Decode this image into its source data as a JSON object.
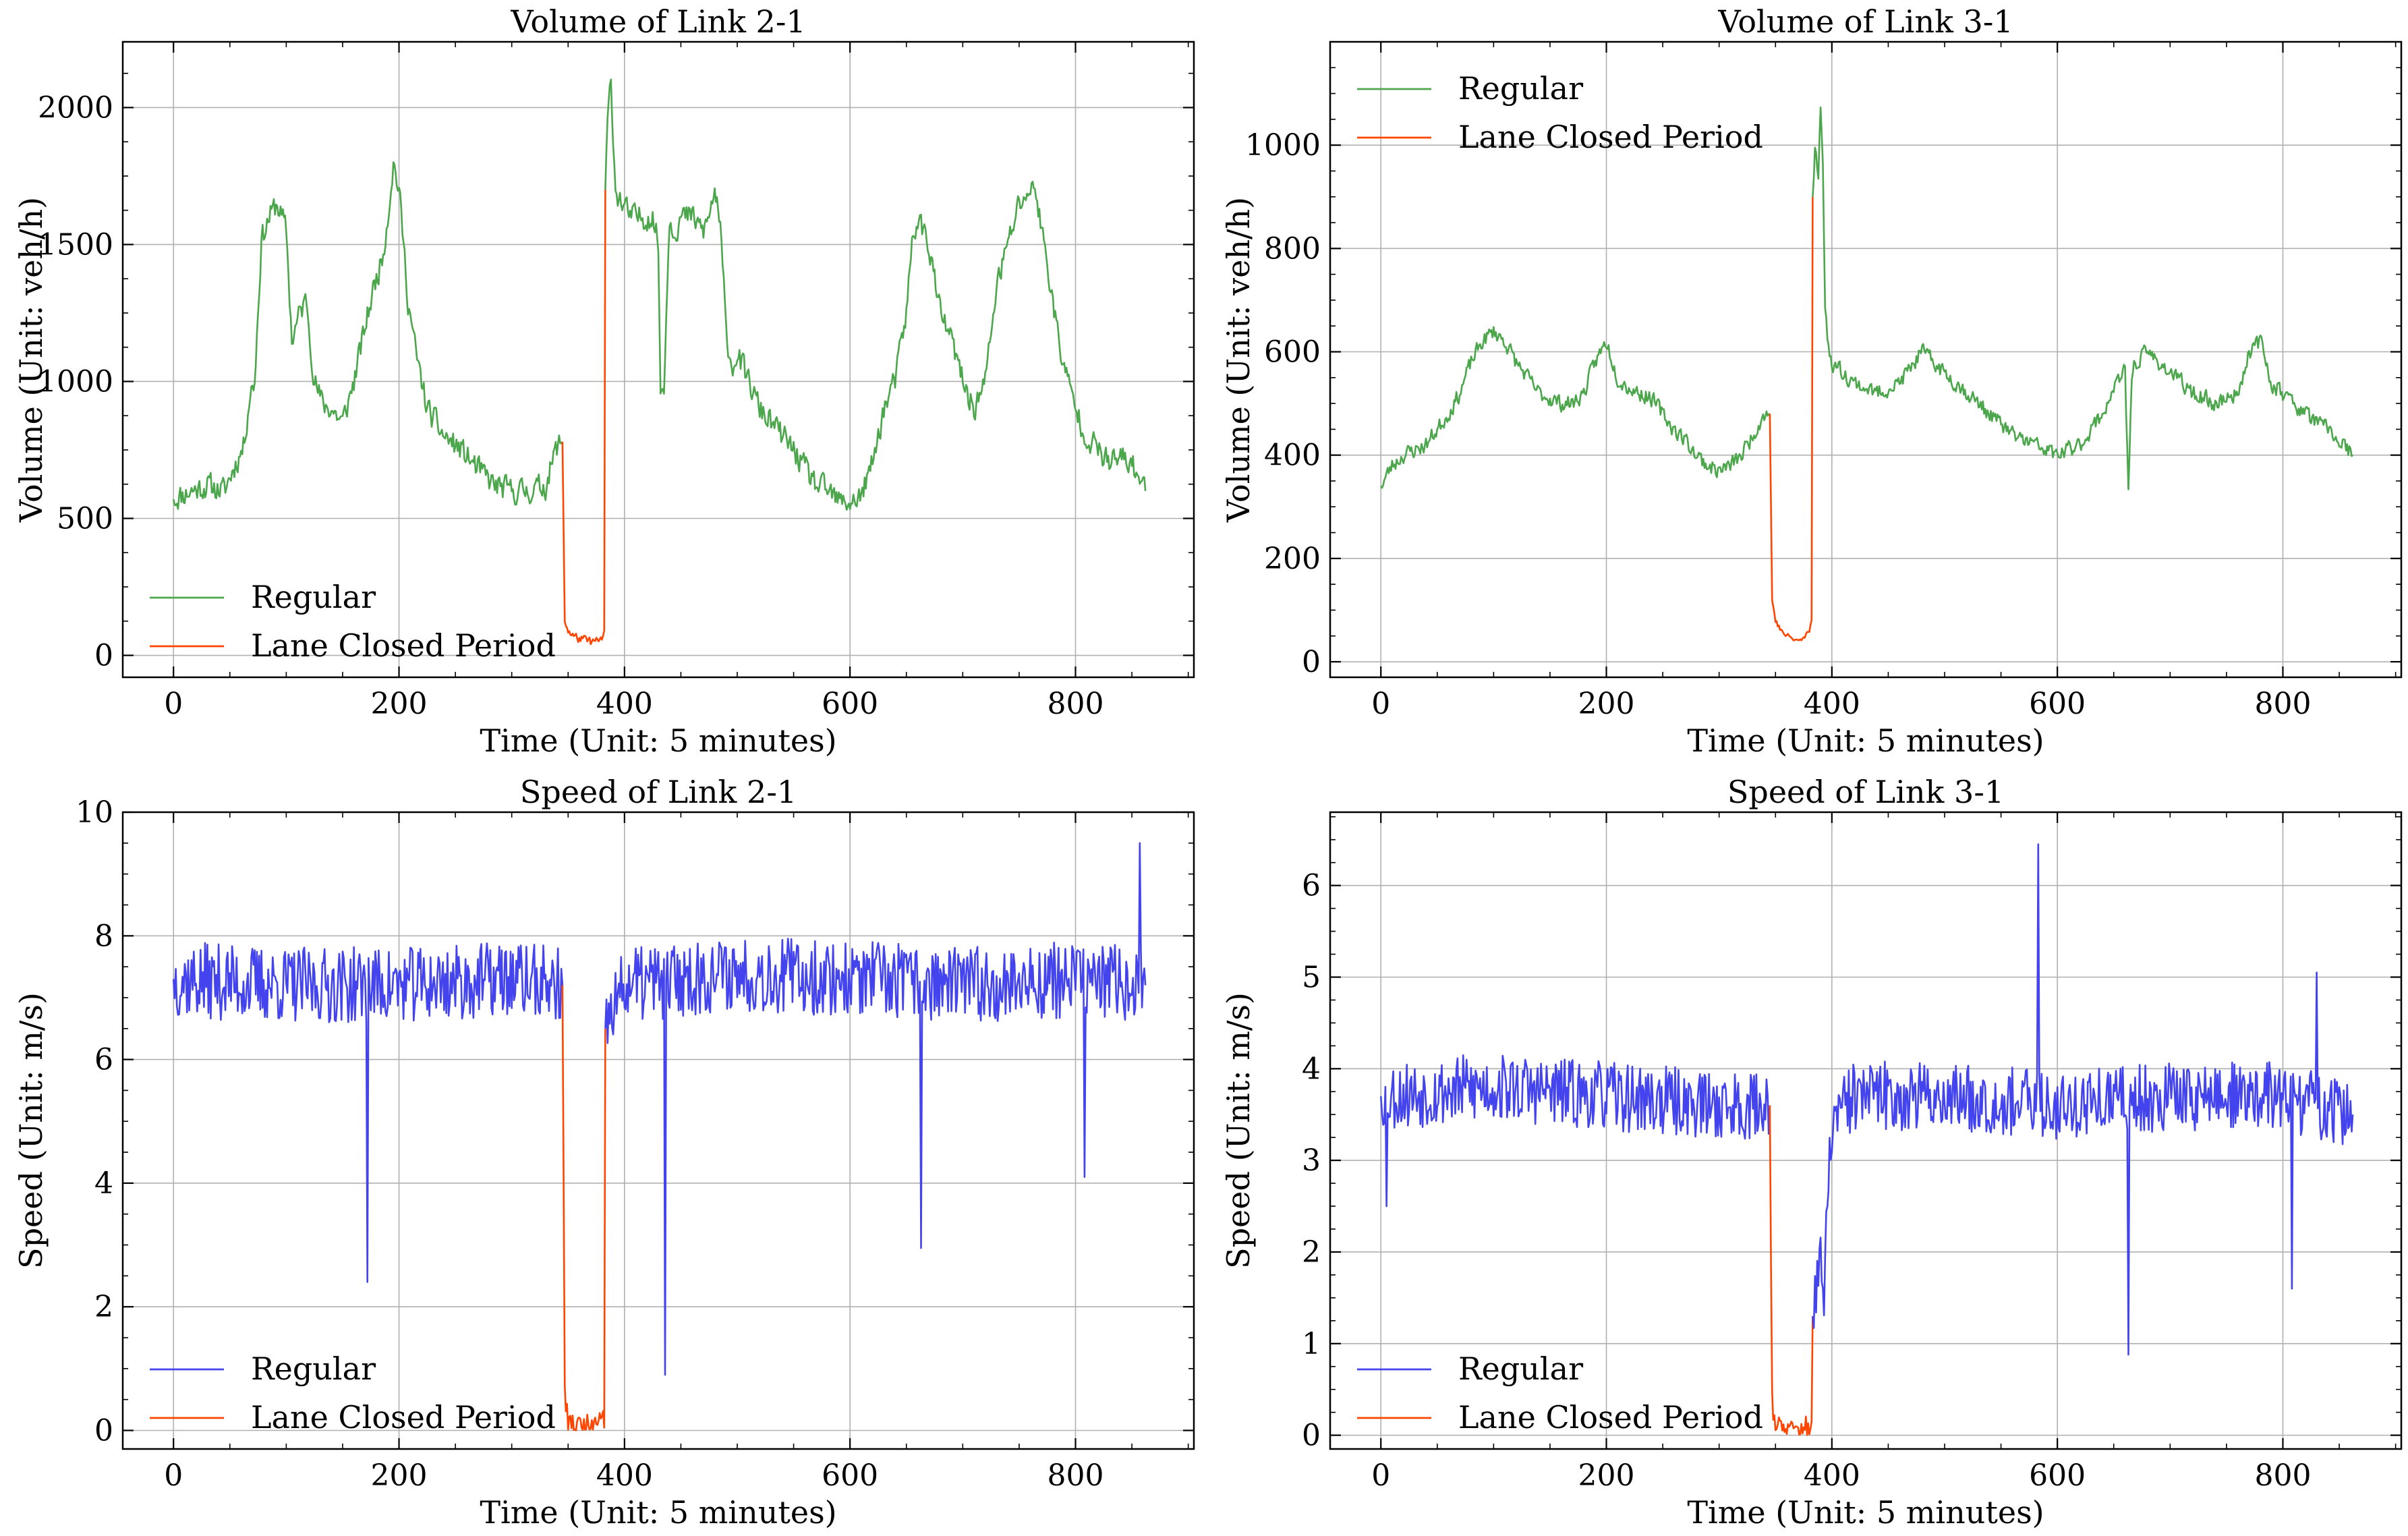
{
  "colors": {
    "regular_volume": "#4ca64c",
    "regular_speed": "#4444ee",
    "lane_closed": "#ff4500"
  },
  "chart_data": [
    {
      "type": "line",
      "title": "Volume of Link 2-1",
      "xlabel": "Time (Unit: 5 minutes)",
      "ylabel": "Volume (Unit: veh/h)",
      "xlim": [
        -45,
        905
      ],
      "ylim": [
        -80,
        2240
      ],
      "xticks": [
        0,
        200,
        400,
        600,
        800
      ],
      "yticks": [
        0,
        500,
        1000,
        1500,
        2000
      ],
      "legend_position": "lower-left",
      "grid": true,
      "noise": 65,
      "seed": 11,
      "series": [
        {
          "name": "Regular",
          "color": "#4ca64c",
          "key_x": [
            0,
            15,
            30,
            45,
            55,
            62,
            68,
            72,
            78,
            85,
            92,
            100,
            105,
            112,
            118,
            125,
            132,
            140,
            150,
            160,
            170,
            178,
            185,
            190,
            195,
            200,
            208,
            215,
            225,
            240,
            255,
            270,
            285,
            300,
            315,
            330,
            340,
            345
          ],
          "key_y": [
            570,
            600,
            620,
            600,
            700,
            760,
            960,
            1000,
            1520,
            1600,
            1650,
            1550,
            1150,
            1250,
            1300,
            1000,
            920,
            900,
            850,
            1000,
            1200,
            1350,
            1450,
            1600,
            1800,
            1700,
            1300,
            1100,
            900,
            800,
            750,
            680,
            620,
            600,
            600,
            620,
            760,
            780
          ]
        },
        {
          "name": "Lane Closed Period",
          "color": "#ff4500",
          "key_x": [
            345,
            347,
            350,
            355,
            360,
            365,
            370,
            375,
            380,
            382,
            383
          ],
          "key_y": [
            780,
            130,
            90,
            70,
            60,
            55,
            50,
            50,
            60,
            80,
            1700
          ]
        },
        {
          "name": "Regular",
          "color": "#4ca64c",
          "key_x": [
            383,
            385,
            388,
            392,
            398,
            405,
            415,
            425,
            430,
            432,
            435,
            440,
            445,
            450,
            460,
            470,
            475,
            480,
            485,
            490,
            495,
            500,
            510,
            520,
            530,
            540,
            550,
            560,
            570,
            580,
            590,
            600,
            610,
            620,
            630,
            640,
            650,
            655,
            660,
            665,
            670,
            680,
            690,
            700,
            710,
            720,
            730,
            740,
            750,
            760,
            765,
            770,
            780,
            785,
            790,
            800,
            810,
            820,
            830,
            840,
            850,
            862
          ],
          "key_y": [
            1700,
            1950,
            2100,
            1700,
            1650,
            1600,
            1600,
            1600,
            1500,
            950,
            1000,
            1600,
            1550,
            1600,
            1600,
            1550,
            1600,
            1700,
            1550,
            1200,
            1050,
            1100,
            1000,
            900,
            850,
            800,
            750,
            680,
            620,
            600,
            560,
            560,
            580,
            700,
            900,
            1000,
            1250,
            1500,
            1600,
            1550,
            1500,
            1250,
            1150,
            1000,
            900,
            1000,
            1350,
            1500,
            1650,
            1700,
            1700,
            1550,
            1300,
            1150,
            1050,
            900,
            800,
            750,
            700,
            720,
            700,
            600
          ]
        }
      ]
    },
    {
      "type": "line",
      "title": "Volume of Link 3-1",
      "xlabel": "Time (Unit: 5 minutes)",
      "ylabel": "Volume (Unit: veh/h)",
      "xlim": [
        -45,
        905
      ],
      "ylim": [
        -30,
        1200
      ],
      "xticks": [
        0,
        200,
        400,
        600,
        800
      ],
      "yticks": [
        0,
        200,
        400,
        600,
        800,
        1000
      ],
      "legend_position": "top-left",
      "grid": true,
      "noise": 22,
      "seed": 23,
      "series": [
        {
          "name": "Regular",
          "color": "#4ca64c",
          "key_x": [
            0,
            10,
            20,
            30,
            40,
            50,
            60,
            70,
            80,
            90,
            100,
            110,
            120,
            130,
            140,
            150,
            160,
            170,
            180,
            190,
            200,
            210,
            220,
            230,
            240,
            250,
            260,
            270,
            280,
            290,
            300,
            310,
            320,
            330,
            340,
            345
          ],
          "key_y": [
            340,
            380,
            400,
            410,
            420,
            450,
            480,
            520,
            580,
            620,
            640,
            620,
            580,
            550,
            520,
            510,
            500,
            500,
            520,
            580,
            620,
            550,
            530,
            520,
            510,
            480,
            450,
            430,
            400,
            380,
            370,
            380,
            400,
            440,
            480,
            480
          ]
        },
        {
          "name": "Lane Closed Period",
          "color": "#ff4500",
          "key_x": [
            345,
            347,
            350,
            355,
            360,
            365,
            370,
            375,
            380,
            382,
            383
          ],
          "key_y": [
            480,
            120,
            80,
            60,
            50,
            45,
            40,
            45,
            60,
            80,
            900
          ]
        },
        {
          "name": "Regular",
          "color": "#4ca64c",
          "key_x": [
            383,
            385,
            388,
            390,
            392,
            394,
            396,
            400,
            420,
            440,
            460,
            480,
            490,
            500,
            520,
            540,
            560,
            580,
            600,
            620,
            640,
            650,
            660,
            663,
            666,
            670,
            680,
            700,
            720,
            740,
            760,
            770,
            780,
            790,
            800,
            820,
            840,
            862
          ],
          "key_y": [
            900,
            1000,
            950,
            1080,
            950,
            700,
            620,
            580,
            540,
            520,
            540,
            600,
            580,
            560,
            520,
            480,
            440,
            420,
            400,
            420,
            480,
            530,
            560,
            330,
            560,
            580,
            600,
            560,
            520,
            500,
            520,
            600,
            620,
            540,
            520,
            480,
            450,
            400
          ]
        }
      ]
    },
    {
      "type": "line",
      "title": "Speed of Link 2-1",
      "xlabel": "Time (Unit: 5 minutes)",
      "ylabel": "Speed (Unit: m/s)",
      "xlim": [
        -45,
        905
      ],
      "ylim": [
        -0.3,
        10
      ],
      "xticks": [
        0,
        200,
        400,
        600,
        800
      ],
      "yticks": [
        0,
        2,
        4,
        6,
        8,
        10
      ],
      "legend_position": "lower-left",
      "grid": true,
      "noise": 0.62,
      "seed": 37,
      "spikes": [
        [
          172,
          2.4
        ],
        [
          436,
          0.9
        ],
        [
          663,
          2.95
        ],
        [
          808,
          4.1
        ],
        [
          857,
          9.5
        ]
      ],
      "series": [
        {
          "name": "Regular",
          "color": "#4444ee",
          "key_x": [
            0,
            100,
            200,
            300,
            345
          ],
          "key_y": [
            7.3,
            7.2,
            7.2,
            7.3,
            7.2
          ]
        },
        {
          "name": "Lane Closed Period",
          "color": "#ff4500",
          "key_x": [
            345,
            347,
            350,
            360,
            370,
            380,
            382,
            383
          ],
          "key_y": [
            7.2,
            0.6,
            0.1,
            0.05,
            0.05,
            0.08,
            0.2,
            6.5
          ]
        },
        {
          "name": "Regular",
          "color": "#4444ee",
          "key_x": [
            383,
            400,
            500,
            600,
            700,
            800,
            862
          ],
          "key_y": [
            6.5,
            7.2,
            7.4,
            7.3,
            7.2,
            7.3,
            7.2
          ]
        }
      ]
    },
    {
      "type": "line",
      "title": "Speed of Link 3-1",
      "xlabel": "Time (Unit: 5 minutes)",
      "ylabel": "Speed (Unit: m/s)",
      "xlim": [
        -45,
        905
      ],
      "ylim": [
        -0.15,
        6.8
      ],
      "xticks": [
        0,
        200,
        400,
        600,
        800
      ],
      "yticks": [
        0,
        1,
        2,
        3,
        4,
        5,
        6
      ],
      "legend_position": "lower-left",
      "grid": true,
      "noise": 0.38,
      "seed": 53,
      "spikes": [
        [
          5,
          2.5
        ],
        [
          583,
          6.45
        ],
        [
          663,
          0.88
        ],
        [
          808,
          1.6
        ],
        [
          830,
          5.05
        ]
      ],
      "series": [
        {
          "name": "Regular",
          "color": "#4444ee",
          "key_x": [
            0,
            100,
            200,
            300,
            345
          ],
          "key_y": [
            3.7,
            3.8,
            3.7,
            3.6,
            3.6
          ]
        },
        {
          "name": "Lane Closed Period",
          "color": "#ff4500",
          "key_x": [
            345,
            347,
            350,
            360,
            370,
            380,
            382,
            383
          ],
          "key_y": [
            3.6,
            0.4,
            0.1,
            0.05,
            0.05,
            0.08,
            0.15,
            1.3
          ]
        },
        {
          "name": "Regular",
          "color": "#4444ee",
          "key_x": [
            383,
            386,
            390,
            393,
            396,
            400,
            420,
            500,
            600,
            700,
            800,
            862
          ],
          "key_y": [
            1.3,
            1.6,
            1.8,
            1.5,
            2.5,
            3.4,
            3.7,
            3.7,
            3.6,
            3.7,
            3.7,
            3.5
          ]
        }
      ]
    }
  ]
}
